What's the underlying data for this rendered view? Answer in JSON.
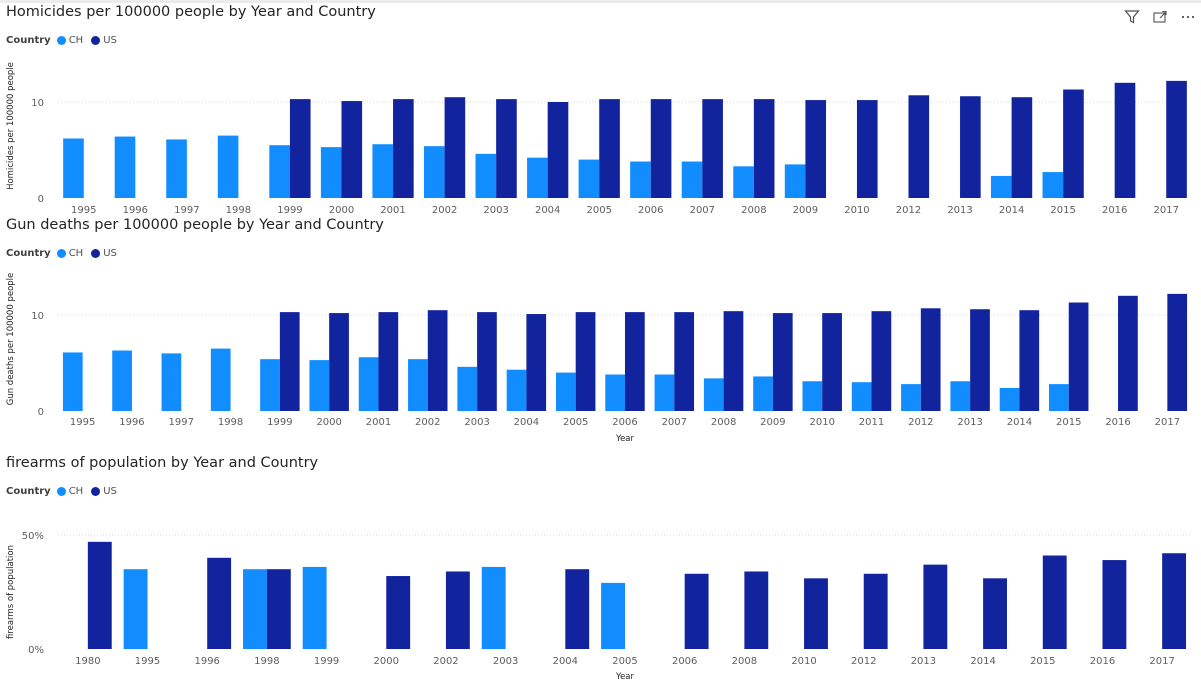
{
  "colors": {
    "CH": "#118dff",
    "US": "#12239e"
  },
  "header_icons": [
    "filter-icon",
    "focus-mode-icon",
    "more-options-icon"
  ],
  "chart_data": [
    {
      "type": "bar",
      "title": "Homicides per 100000 people by Year and Country",
      "legend": {
        "title": "Country",
        "entries": [
          "CH",
          "US"
        ],
        "position": "top-left"
      },
      "xlabel": "",
      "ylabel": "Homicides per 100000 people",
      "ylim": [
        0,
        15
      ],
      "yticks": [
        {
          "v": 0,
          "label": "0"
        },
        {
          "v": 10,
          "label": "10"
        }
      ],
      "categories": [
        "1995",
        "1996",
        "1997",
        "1998",
        "1999",
        "2000",
        "2001",
        "2002",
        "2003",
        "2004",
        "2005",
        "2006",
        "2007",
        "2008",
        "2009",
        "2010",
        "2012",
        "2013",
        "2014",
        "2015",
        "2016",
        "2017"
      ],
      "series": [
        {
          "name": "CH",
          "values": [
            6.2,
            6.4,
            6.1,
            6.5,
            5.5,
            5.3,
            5.6,
            5.4,
            4.6,
            4.2,
            4.0,
            3.8,
            3.8,
            3.3,
            3.5,
            null,
            null,
            null,
            2.3,
            2.7,
            null,
            null
          ]
        },
        {
          "name": "US",
          "values": [
            null,
            null,
            null,
            null,
            10.3,
            10.1,
            10.3,
            10.5,
            10.3,
            10.0,
            10.3,
            10.3,
            10.3,
            10.3,
            10.2,
            10.2,
            10.7,
            10.6,
            10.5,
            11.3,
            12.0,
            12.2
          ]
        }
      ]
    },
    {
      "type": "bar",
      "title": "Gun deaths per 100000 people by Year and Country",
      "legend": {
        "title": "Country",
        "entries": [
          "CH",
          "US"
        ],
        "position": "top-left"
      },
      "xlabel": "Year",
      "ylabel": "Gun deaths per 100000 people",
      "ylim": [
        0,
        15
      ],
      "yticks": [
        {
          "v": 0,
          "label": "0"
        },
        {
          "v": 10,
          "label": "10"
        }
      ],
      "categories": [
        "1995",
        "1996",
        "1997",
        "1998",
        "1999",
        "2000",
        "2001",
        "2002",
        "2003",
        "2004",
        "2005",
        "2006",
        "2007",
        "2008",
        "2009",
        "2010",
        "2011",
        "2012",
        "2013",
        "2014",
        "2015",
        "2016",
        "2017"
      ],
      "series": [
        {
          "name": "CH",
          "values": [
            6.1,
            6.3,
            6.0,
            6.5,
            5.4,
            5.3,
            5.6,
            5.4,
            4.6,
            4.3,
            4.0,
            3.8,
            3.8,
            3.4,
            3.6,
            3.1,
            3.0,
            2.8,
            3.1,
            2.4,
            2.8,
            null,
            null
          ]
        },
        {
          "name": "US",
          "values": [
            null,
            null,
            null,
            null,
            10.3,
            10.2,
            10.3,
            10.5,
            10.3,
            10.1,
            10.3,
            10.3,
            10.3,
            10.4,
            10.2,
            10.2,
            10.4,
            10.7,
            10.6,
            10.5,
            11.3,
            12.0,
            12.2
          ]
        }
      ]
    },
    {
      "type": "bar",
      "title": "firearms of population by Year and Country",
      "legend": {
        "title": "Country",
        "entries": [
          "CH",
          "US"
        ],
        "position": "top-left"
      },
      "xlabel": "Year",
      "ylabel": "firearms of population",
      "ylim": [
        0,
        0.5
      ],
      "yticks": [
        {
          "v": 0,
          "label": "0%"
        },
        {
          "v": 0.5,
          "label": "50%"
        }
      ],
      "categories": [
        "1980",
        "1995",
        "1996",
        "1998",
        "1999",
        "2000",
        "2002",
        "2003",
        "2004",
        "2005",
        "2006",
        "2008",
        "2010",
        "2012",
        "2013",
        "2014",
        "2015",
        "2016",
        "2017"
      ],
      "series": [
        {
          "name": "CH",
          "values": [
            null,
            0.35,
            null,
            0.35,
            0.36,
            null,
            null,
            0.36,
            null,
            0.29,
            null,
            null,
            null,
            null,
            null,
            null,
            null,
            null,
            null
          ]
        },
        {
          "name": "US",
          "values": [
            0.47,
            null,
            0.4,
            0.35,
            null,
            0.32,
            0.34,
            null,
            0.35,
            null,
            0.33,
            0.34,
            0.31,
            0.33,
            0.37,
            0.31,
            0.41,
            0.39,
            0.42
          ]
        }
      ]
    }
  ]
}
